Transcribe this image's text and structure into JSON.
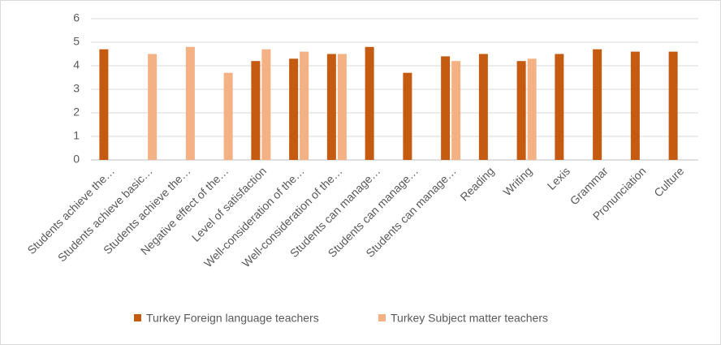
{
  "chart_data": {
    "type": "bar",
    "categories": [
      "Students achieve the…",
      "Students achieve basic…",
      "Students achieve the…",
      "Negative effect of the…",
      "Level of satisfaction",
      "Well-consideration of the…",
      "Well-consideration of the…",
      "Students can manage…",
      "Students can manage…",
      "Students can manage…",
      "Reading",
      "Writing",
      "Lexis",
      "Grammar",
      "Pronunciation",
      "Culture"
    ],
    "series": [
      {
        "name": "Turkey Foreign language teachers",
        "color": "#c55a11",
        "values": [
          4.7,
          null,
          null,
          null,
          4.2,
          4.3,
          4.5,
          4.8,
          3.7,
          4.4,
          4.5,
          4.2,
          4.5,
          4.7,
          4.6,
          4.6
        ]
      },
      {
        "name": "Turkey Subject matter teachers",
        "color": "#f4b183",
        "values": [
          null,
          4.5,
          4.8,
          3.7,
          4.7,
          4.6,
          4.5,
          null,
          null,
          4.2,
          null,
          4.3,
          null,
          null,
          null,
          null
        ]
      }
    ],
    "ylim": [
      0,
      6
    ],
    "yticks": [
      0,
      1,
      2,
      3,
      4,
      5,
      6
    ],
    "grid": true,
    "legend": "bottom"
  }
}
